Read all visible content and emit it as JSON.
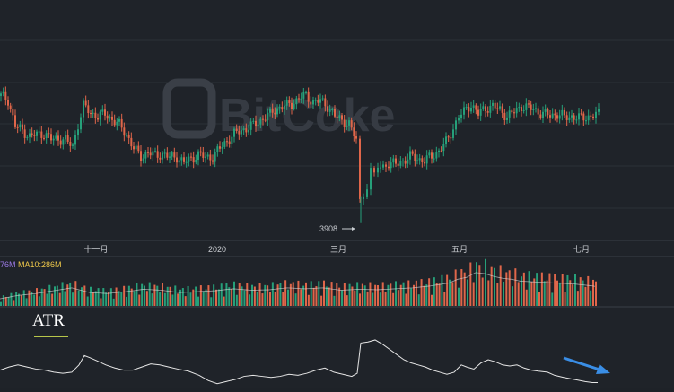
{
  "watermark": "BitCoke",
  "colors": {
    "background": "#1f2329",
    "grid": "#2b3038",
    "up": "#26a07a",
    "down": "#e0664a",
    "axis_text": "#c9ccd1",
    "ma5": "#9b79e6",
    "ma10": "#f0c94a",
    "atr_line": "#e6e6e6",
    "arrow": "#3a8ee6"
  },
  "chart_data": [
    {
      "type": "candlestick",
      "title": "",
      "xlabel": "",
      "ylabel": "",
      "x_tick_labels": [
        "十一月",
        "2020",
        "三月",
        "五月",
        "七月"
      ],
      "annotations": [
        {
          "text": "3908",
          "meaning": "low of the March crash"
        }
      ],
      "ylim": [
        3500,
        14500
      ],
      "grid": true,
      "close_series": [
        [
          0,
          10200
        ],
        [
          8,
          10000
        ],
        [
          16,
          8700
        ],
        [
          24,
          8500
        ],
        [
          32,
          8200
        ],
        [
          40,
          8300
        ],
        [
          48,
          8350
        ],
        [
          56,
          8050
        ],
        [
          64,
          8100
        ],
        [
          72,
          8000
        ],
        [
          80,
          7700
        ],
        [
          86,
          8800
        ],
        [
          92,
          9700
        ],
        [
          100,
          9350
        ],
        [
          108,
          9200
        ],
        [
          116,
          9300
        ],
        [
          124,
          9050
        ],
        [
          132,
          8750
        ],
        [
          140,
          8300
        ],
        [
          148,
          7600
        ],
        [
          156,
          7200
        ],
        [
          164,
          7400
        ],
        [
          172,
          7250
        ],
        [
          180,
          7350
        ],
        [
          188,
          7150
        ],
        [
          196,
          7200
        ],
        [
          204,
          6900
        ],
        [
          212,
          7100
        ],
        [
          220,
          7300
        ],
        [
          228,
          7150
        ],
        [
          236,
          7200
        ],
        [
          244,
          7600
        ],
        [
          252,
          8000
        ],
        [
          260,
          8300
        ],
        [
          268,
          8500
        ],
        [
          276,
          8650
        ],
        [
          284,
          8800
        ],
        [
          292,
          9100
        ],
        [
          300,
          9300
        ],
        [
          308,
          9600
        ],
        [
          316,
          9700
        ],
        [
          324,
          9800
        ],
        [
          332,
          10100
        ],
        [
          340,
          10200
        ],
        [
          348,
          9900
        ],
        [
          356,
          9950
        ],
        [
          364,
          9700
        ],
        [
          372,
          9200
        ],
        [
          380,
          9000
        ],
        [
          388,
          8800
        ],
        [
          396,
          8000
        ],
        [
          400,
          5000
        ],
        [
          404,
          5400
        ],
        [
          408,
          5800
        ],
        [
          412,
          6500
        ],
        [
          416,
          6200
        ],
        [
          420,
          6700
        ],
        [
          426,
          6700
        ],
        [
          432,
          6900
        ],
        [
          440,
          6800
        ],
        [
          448,
          7000
        ],
        [
          456,
          7200
        ],
        [
          464,
          7100
        ],
        [
          472,
          7000
        ],
        [
          480,
          7200
        ],
        [
          488,
          7500
        ],
        [
          496,
          7900
        ],
        [
          504,
          8600
        ],
        [
          510,
          9200
        ],
        [
          516,
          9400
        ],
        [
          524,
          9800
        ],
        [
          532,
          9300
        ],
        [
          540,
          9600
        ],
        [
          548,
          9700
        ],
        [
          556,
          9500
        ],
        [
          564,
          9200
        ],
        [
          572,
          9400
        ],
        [
          580,
          9700
        ],
        [
          588,
          9600
        ],
        [
          596,
          9500
        ],
        [
          604,
          9300
        ],
        [
          612,
          9250
        ],
        [
          620,
          9300
        ],
        [
          628,
          9150
        ],
        [
          636,
          9200
        ],
        [
          644,
          9100
        ],
        [
          652,
          9150
        ],
        [
          660,
          9250
        ],
        [
          666,
          9300
        ]
      ]
    },
    {
      "type": "bar",
      "title": "",
      "series_labels": [
        "76M",
        "MA10:286M"
      ],
      "ylim": [
        0,
        1000
      ],
      "volume_series": [
        [
          0,
          150
        ],
        [
          20,
          220
        ],
        [
          40,
          260
        ],
        [
          60,
          320
        ],
        [
          80,
          380
        ],
        [
          90,
          330
        ],
        [
          100,
          280
        ],
        [
          120,
          260
        ],
        [
          140,
          300
        ],
        [
          160,
          350
        ],
        [
          180,
          330
        ],
        [
          200,
          280
        ],
        [
          220,
          300
        ],
        [
          240,
          320
        ],
        [
          260,
          360
        ],
        [
          280,
          330
        ],
        [
          300,
          340
        ],
        [
          320,
          380
        ],
        [
          340,
          360
        ],
        [
          360,
          380
        ],
        [
          380,
          330
        ],
        [
          400,
          350
        ],
        [
          420,
          340
        ],
        [
          440,
          360
        ],
        [
          460,
          380
        ],
        [
          480,
          420
        ],
        [
          500,
          480
        ],
        [
          510,
          560
        ],
        [
          520,
          600
        ],
        [
          530,
          700
        ],
        [
          540,
          680
        ],
        [
          550,
          620
        ],
        [
          560,
          580
        ],
        [
          570,
          560
        ],
        [
          580,
          520
        ],
        [
          600,
          500
        ],
        [
          620,
          480
        ],
        [
          640,
          460
        ],
        [
          660,
          420
        ],
        [
          666,
          400
        ]
      ]
    },
    {
      "type": "line",
      "title": "ATR",
      "ylim": [
        0,
        100
      ],
      "atr_series": [
        [
          0,
          30
        ],
        [
          10,
          36
        ],
        [
          20,
          40
        ],
        [
          30,
          36
        ],
        [
          40,
          32
        ],
        [
          50,
          30
        ],
        [
          60,
          26
        ],
        [
          70,
          24
        ],
        [
          80,
          26
        ],
        [
          88,
          40
        ],
        [
          94,
          58
        ],
        [
          100,
          54
        ],
        [
          108,
          48
        ],
        [
          118,
          40
        ],
        [
          128,
          34
        ],
        [
          138,
          30
        ],
        [
          148,
          30
        ],
        [
          158,
          36
        ],
        [
          168,
          42
        ],
        [
          178,
          40
        ],
        [
          188,
          36
        ],
        [
          198,
          32
        ],
        [
          210,
          28
        ],
        [
          222,
          20
        ],
        [
          232,
          10
        ],
        [
          242,
          4
        ],
        [
          252,
          8
        ],
        [
          262,
          12
        ],
        [
          272,
          18
        ],
        [
          282,
          20
        ],
        [
          292,
          18
        ],
        [
          302,
          16
        ],
        [
          312,
          18
        ],
        [
          322,
          22
        ],
        [
          332,
          20
        ],
        [
          342,
          24
        ],
        [
          352,
          30
        ],
        [
          362,
          34
        ],
        [
          372,
          26
        ],
        [
          382,
          22
        ],
        [
          392,
          18
        ],
        [
          398,
          24
        ],
        [
          402,
          82
        ],
        [
          410,
          84
        ],
        [
          418,
          88
        ],
        [
          426,
          80
        ],
        [
          434,
          70
        ],
        [
          442,
          60
        ],
        [
          450,
          50
        ],
        [
          458,
          44
        ],
        [
          466,
          40
        ],
        [
          474,
          36
        ],
        [
          482,
          30
        ],
        [
          490,
          26
        ],
        [
          498,
          22
        ],
        [
          506,
          26
        ],
        [
          514,
          40
        ],
        [
          520,
          36
        ],
        [
          528,
          32
        ],
        [
          536,
          44
        ],
        [
          544,
          50
        ],
        [
          552,
          46
        ],
        [
          560,
          40
        ],
        [
          568,
          38
        ],
        [
          576,
          40
        ],
        [
          584,
          34
        ],
        [
          592,
          30
        ],
        [
          600,
          28
        ],
        [
          610,
          26
        ],
        [
          618,
          20
        ],
        [
          628,
          16
        ],
        [
          640,
          12
        ],
        [
          652,
          8
        ],
        [
          660,
          6
        ],
        [
          666,
          6
        ]
      ]
    }
  ]
}
